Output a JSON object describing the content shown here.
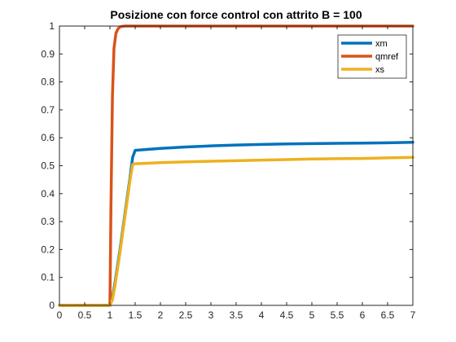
{
  "chart_data": {
    "type": "line",
    "title": "Posizione con force control con attrito B = 100",
    "xlabel": "",
    "ylabel": "",
    "xlim": [
      0,
      7
    ],
    "ylim": [
      0,
      1
    ],
    "x_ticks": [
      0,
      0.5,
      1,
      1.5,
      2,
      2.5,
      3,
      3.5,
      4,
      4.5,
      5,
      5.5,
      6,
      6.5,
      7
    ],
    "x_tick_labels": [
      "0",
      "0.5",
      "1",
      "1.5",
      "2",
      "2.5",
      "3",
      "3.5",
      "4",
      "4.5",
      "5",
      "5.5",
      "6",
      "6.5",
      "7"
    ],
    "y_ticks": [
      0,
      0.1,
      0.2,
      0.3,
      0.4,
      0.5,
      0.6,
      0.7,
      0.8,
      0.9,
      1
    ],
    "y_tick_labels": [
      "0",
      "0.1",
      "0.2",
      "0.3",
      "0.4",
      "0.5",
      "0.6",
      "0.7",
      "0.8",
      "0.9",
      "1"
    ],
    "grid": false,
    "legend_position": "top-right",
    "series": [
      {
        "name": "xm",
        "color": "#0072BD",
        "x": [
          0,
          1,
          1.05,
          1.1,
          1.2,
          1.3,
          1.4,
          1.45,
          1.5,
          2,
          2.5,
          3,
          3.5,
          4,
          4.5,
          5,
          5.5,
          6,
          6.5,
          7
        ],
        "y": [
          0,
          0,
          0.03,
          0.08,
          0.2,
          0.33,
          0.46,
          0.53,
          0.555,
          0.562,
          0.567,
          0.571,
          0.574,
          0.576,
          0.578,
          0.579,
          0.58,
          0.581,
          0.582,
          0.584
        ]
      },
      {
        "name": "qmref",
        "color": "#D95319",
        "x": [
          0,
          1,
          1.02,
          1.05,
          1.08,
          1.12,
          1.16,
          1.2,
          1.25,
          1.3,
          1.4,
          2,
          3,
          4,
          5,
          6,
          7
        ],
        "y": [
          0,
          0,
          0.35,
          0.75,
          0.92,
          0.975,
          0.99,
          0.997,
          0.999,
          1,
          1,
          1,
          1,
          1,
          1,
          1,
          1
        ]
      },
      {
        "name": "xs",
        "color": "#EDB120",
        "x": [
          0,
          1,
          1.05,
          1.1,
          1.2,
          1.3,
          1.4,
          1.45,
          1.5,
          2,
          2.5,
          3,
          3.5,
          4,
          4.5,
          5,
          5.5,
          6,
          6.5,
          7
        ],
        "y": [
          0,
          0,
          0.02,
          0.07,
          0.19,
          0.32,
          0.45,
          0.505,
          0.507,
          0.511,
          0.514,
          0.516,
          0.518,
          0.52,
          0.522,
          0.524,
          0.525,
          0.526,
          0.528,
          0.53
        ]
      }
    ]
  }
}
